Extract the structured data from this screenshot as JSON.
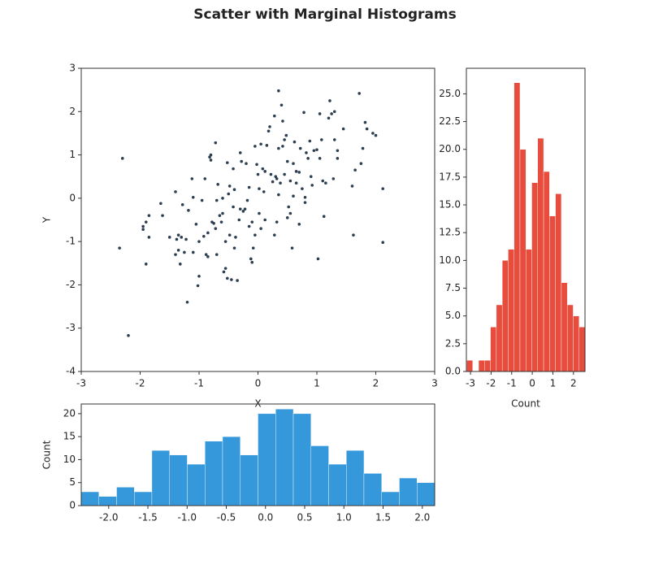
{
  "title": "Scatter with Marginal Histograms",
  "chart_data": [
    {
      "type": "scatter",
      "xlabel": "X",
      "ylabel": "Y",
      "color": "#2c3e50",
      "xlim": [
        -3,
        3
      ],
      "ylim": [
        -4,
        3
      ],
      "xticks": [
        -3,
        -2,
        -1,
        0,
        1,
        2,
        3
      ],
      "yticks": [
        -4,
        -3,
        -2,
        -1,
        0,
        1,
        2,
        3
      ],
      "x": [
        -2.35,
        -2.3,
        -2.2,
        -1.9,
        -1.95,
        -1.95,
        -1.9,
        -1.85,
        -1.85,
        -1.65,
        -1.62,
        -1.5,
        -1.4,
        -1.4,
        -1.38,
        -1.35,
        -1.35,
        -1.32,
        -1.3,
        -1.28,
        -1.25,
        -1.22,
        -1.2,
        -1.18,
        -1.12,
        -1.1,
        -1.1,
        -1.05,
        -1.0,
        -1.02,
        -1.0,
        -0.95,
        -0.92,
        -0.9,
        -0.88,
        -0.85,
        -0.85,
        -0.82,
        -0.8,
        -0.8,
        -0.78,
        -0.75,
        -0.72,
        -0.72,
        -0.7,
        -0.7,
        -0.68,
        -0.65,
        -0.62,
        -0.6,
        -0.6,
        -0.58,
        -0.55,
        -0.55,
        -0.52,
        -0.52,
        -0.5,
        -0.48,
        -0.48,
        -0.45,
        -0.42,
        -0.42,
        -0.4,
        -0.4,
        -0.38,
        -0.35,
        -0.32,
        -0.3,
        -0.3,
        -0.28,
        -0.25,
        -0.22,
        -0.2,
        -0.18,
        -0.15,
        -0.15,
        -0.12,
        -0.1,
        -0.1,
        -0.08,
        -0.05,
        -0.05,
        -0.02,
        0.0,
        0.02,
        0.02,
        0.05,
        0.05,
        0.08,
        0.1,
        0.12,
        0.12,
        0.15,
        0.18,
        0.2,
        0.22,
        0.25,
        0.28,
        0.28,
        0.3,
        0.32,
        0.32,
        0.35,
        0.35,
        0.35,
        0.38,
        0.4,
        0.42,
        0.42,
        0.45,
        0.45,
        0.48,
        0.5,
        0.5,
        0.52,
        0.55,
        0.55,
        0.58,
        0.6,
        0.6,
        0.62,
        0.65,
        0.65,
        0.7,
        0.7,
        0.72,
        0.75,
        0.78,
        0.8,
        0.8,
        0.82,
        0.85,
        0.88,
        0.9,
        0.92,
        0.95,
        1.0,
        1.02,
        1.05,
        1.05,
        1.08,
        1.1,
        1.12,
        1.15,
        1.2,
        1.22,
        1.25,
        1.28,
        1.3,
        1.3,
        1.35,
        1.35,
        1.45,
        1.6,
        1.62,
        1.65,
        1.72,
        1.75,
        1.78,
        1.82,
        1.85,
        1.95,
        2.0,
        2.12,
        2.12
      ],
      "y": [
        -1.15,
        0.92,
        -3.17,
        -1.52,
        -0.65,
        -0.72,
        -0.55,
        -0.4,
        -0.9,
        -0.12,
        -0.4,
        -0.9,
        0.15,
        -1.3,
        -0.95,
        -0.85,
        -1.2,
        -1.52,
        -0.9,
        -0.15,
        -1.25,
        -0.95,
        -2.4,
        -0.28,
        0.45,
        0.02,
        -1.25,
        -0.6,
        -1.0,
        -2.02,
        -1.8,
        -0.05,
        -0.88,
        0.45,
        -1.3,
        -1.35,
        -0.8,
        0.95,
        0.88,
        1.0,
        -0.55,
        -0.58,
        1.28,
        -0.7,
        -0.05,
        -1.3,
        0.32,
        -0.4,
        -0.55,
        -0.35,
        0.0,
        -1.7,
        -1.62,
        -1.0,
        -1.85,
        0.82,
        0.1,
        -0.85,
        0.28,
        -1.88,
        0.68,
        -0.2,
        0.2,
        -1.15,
        -0.9,
        -1.9,
        -0.5,
        1.05,
        -0.25,
        0.85,
        -0.3,
        -0.25,
        0.8,
        -0.05,
        -0.65,
        0.25,
        -1.4,
        -1.48,
        -0.55,
        -1.15,
        -0.85,
        1.2,
        0.78,
        0.55,
        -0.35,
        0.22,
        -0.7,
        1.25,
        0.68,
        0.15,
        0.62,
        -0.5,
        1.22,
        1.55,
        1.65,
        0.55,
        0.38,
        1.9,
        -0.85,
        0.5,
        0.45,
        -0.55,
        2.48,
        1.15,
        0.08,
        0.35,
        2.15,
        1.2,
        1.78,
        0.55,
        1.35,
        1.45,
        -0.45,
        0.85,
        -0.2,
        -0.35,
        0.4,
        -1.15,
        0.05,
        0.8,
        1.3,
        0.35,
        0.62,
        -0.6,
        0.6,
        1.15,
        0.22,
        1.98,
        -0.1,
        0.02,
        1.05,
        0.92,
        1.32,
        0.5,
        0.3,
        1.1,
        1.12,
        -1.4,
        1.95,
        0.92,
        1.35,
        0.4,
        -0.42,
        0.35,
        1.85,
        2.25,
        1.95,
        0.45,
        2.0,
        1.35,
        1.1,
        0.92,
        1.6,
        0.28,
        -0.85,
        0.65,
        2.42,
        0.8,
        1.15,
        1.75,
        1.6,
        1.5,
        1.45,
        0.22,
        -1.02
      ]
    },
    {
      "type": "histogram",
      "xlabel": "Count",
      "color": "#e74c3c",
      "xlim": [
        -3.2,
        2.56
      ],
      "ylim": [
        0,
        27.3
      ],
      "xticks": [
        -3,
        -2,
        -1,
        0,
        1,
        2
      ],
      "yticks": [
        {
          "value": 0,
          "label": "0.0"
        },
        {
          "value": 2.5,
          "label": "2.5"
        },
        {
          "value": 5,
          "label": "5.0"
        },
        {
          "value": 7.5,
          "label": "7.5"
        },
        {
          "value": 10,
          "label": "10.0"
        },
        {
          "value": 12.5,
          "label": "12.5"
        },
        {
          "value": 15,
          "label": "15.0"
        },
        {
          "value": 17.5,
          "label": "17.5"
        },
        {
          "value": 20,
          "label": "20.0"
        },
        {
          "value": 22.5,
          "label": "22.5"
        },
        {
          "value": 25,
          "label": "25.0"
        }
      ],
      "bins": [
        -3.18,
        -2.893,
        -2.606,
        -2.319,
        -2.032,
        -1.745,
        -1.458,
        -1.171,
        -0.884,
        -0.597,
        -0.31,
        -0.023,
        0.264,
        0.551,
        0.838,
        1.125,
        1.412,
        1.699,
        1.986,
        2.273,
        2.56
      ],
      "values": [
        1,
        0,
        1,
        1,
        4,
        6,
        10,
        11,
        26,
        20,
        11,
        17,
        21,
        18,
        14,
        16,
        8,
        6,
        5,
        4
      ]
    },
    {
      "type": "histogram",
      "ylabel": "Count",
      "color": "#3498db",
      "xlim": [
        -2.35,
        2.158
      ],
      "ylim": [
        0,
        22.1
      ],
      "xticks": [
        {
          "value": -2,
          "label": "-2.0"
        },
        {
          "value": -1.5,
          "label": "-1.5"
        },
        {
          "value": -1,
          "label": "-1.0"
        },
        {
          "value": -0.5,
          "label": "-0.5"
        },
        {
          "value": 0,
          "label": "0.0"
        },
        {
          "value": 0.5,
          "label": "0.5"
        },
        {
          "value": 1,
          "label": "1.0"
        },
        {
          "value": 1.5,
          "label": "1.5"
        },
        {
          "value": 2,
          "label": "2.0"
        }
      ],
      "yticks": [
        0,
        5,
        10,
        15,
        20
      ],
      "bins": [
        -2.35,
        -2.125,
        -1.899,
        -1.674,
        -1.449,
        -1.223,
        -0.998,
        -0.772,
        -0.547,
        -0.322,
        -0.096,
        0.129,
        0.355,
        0.58,
        0.806,
        1.031,
        1.256,
        1.482,
        1.707,
        1.933,
        2.158
      ],
      "values": [
        3,
        2,
        4,
        3,
        12,
        11,
        9,
        14,
        15,
        11,
        20,
        21,
        20,
        13,
        9,
        12,
        7,
        3,
        6,
        5
      ]
    }
  ]
}
